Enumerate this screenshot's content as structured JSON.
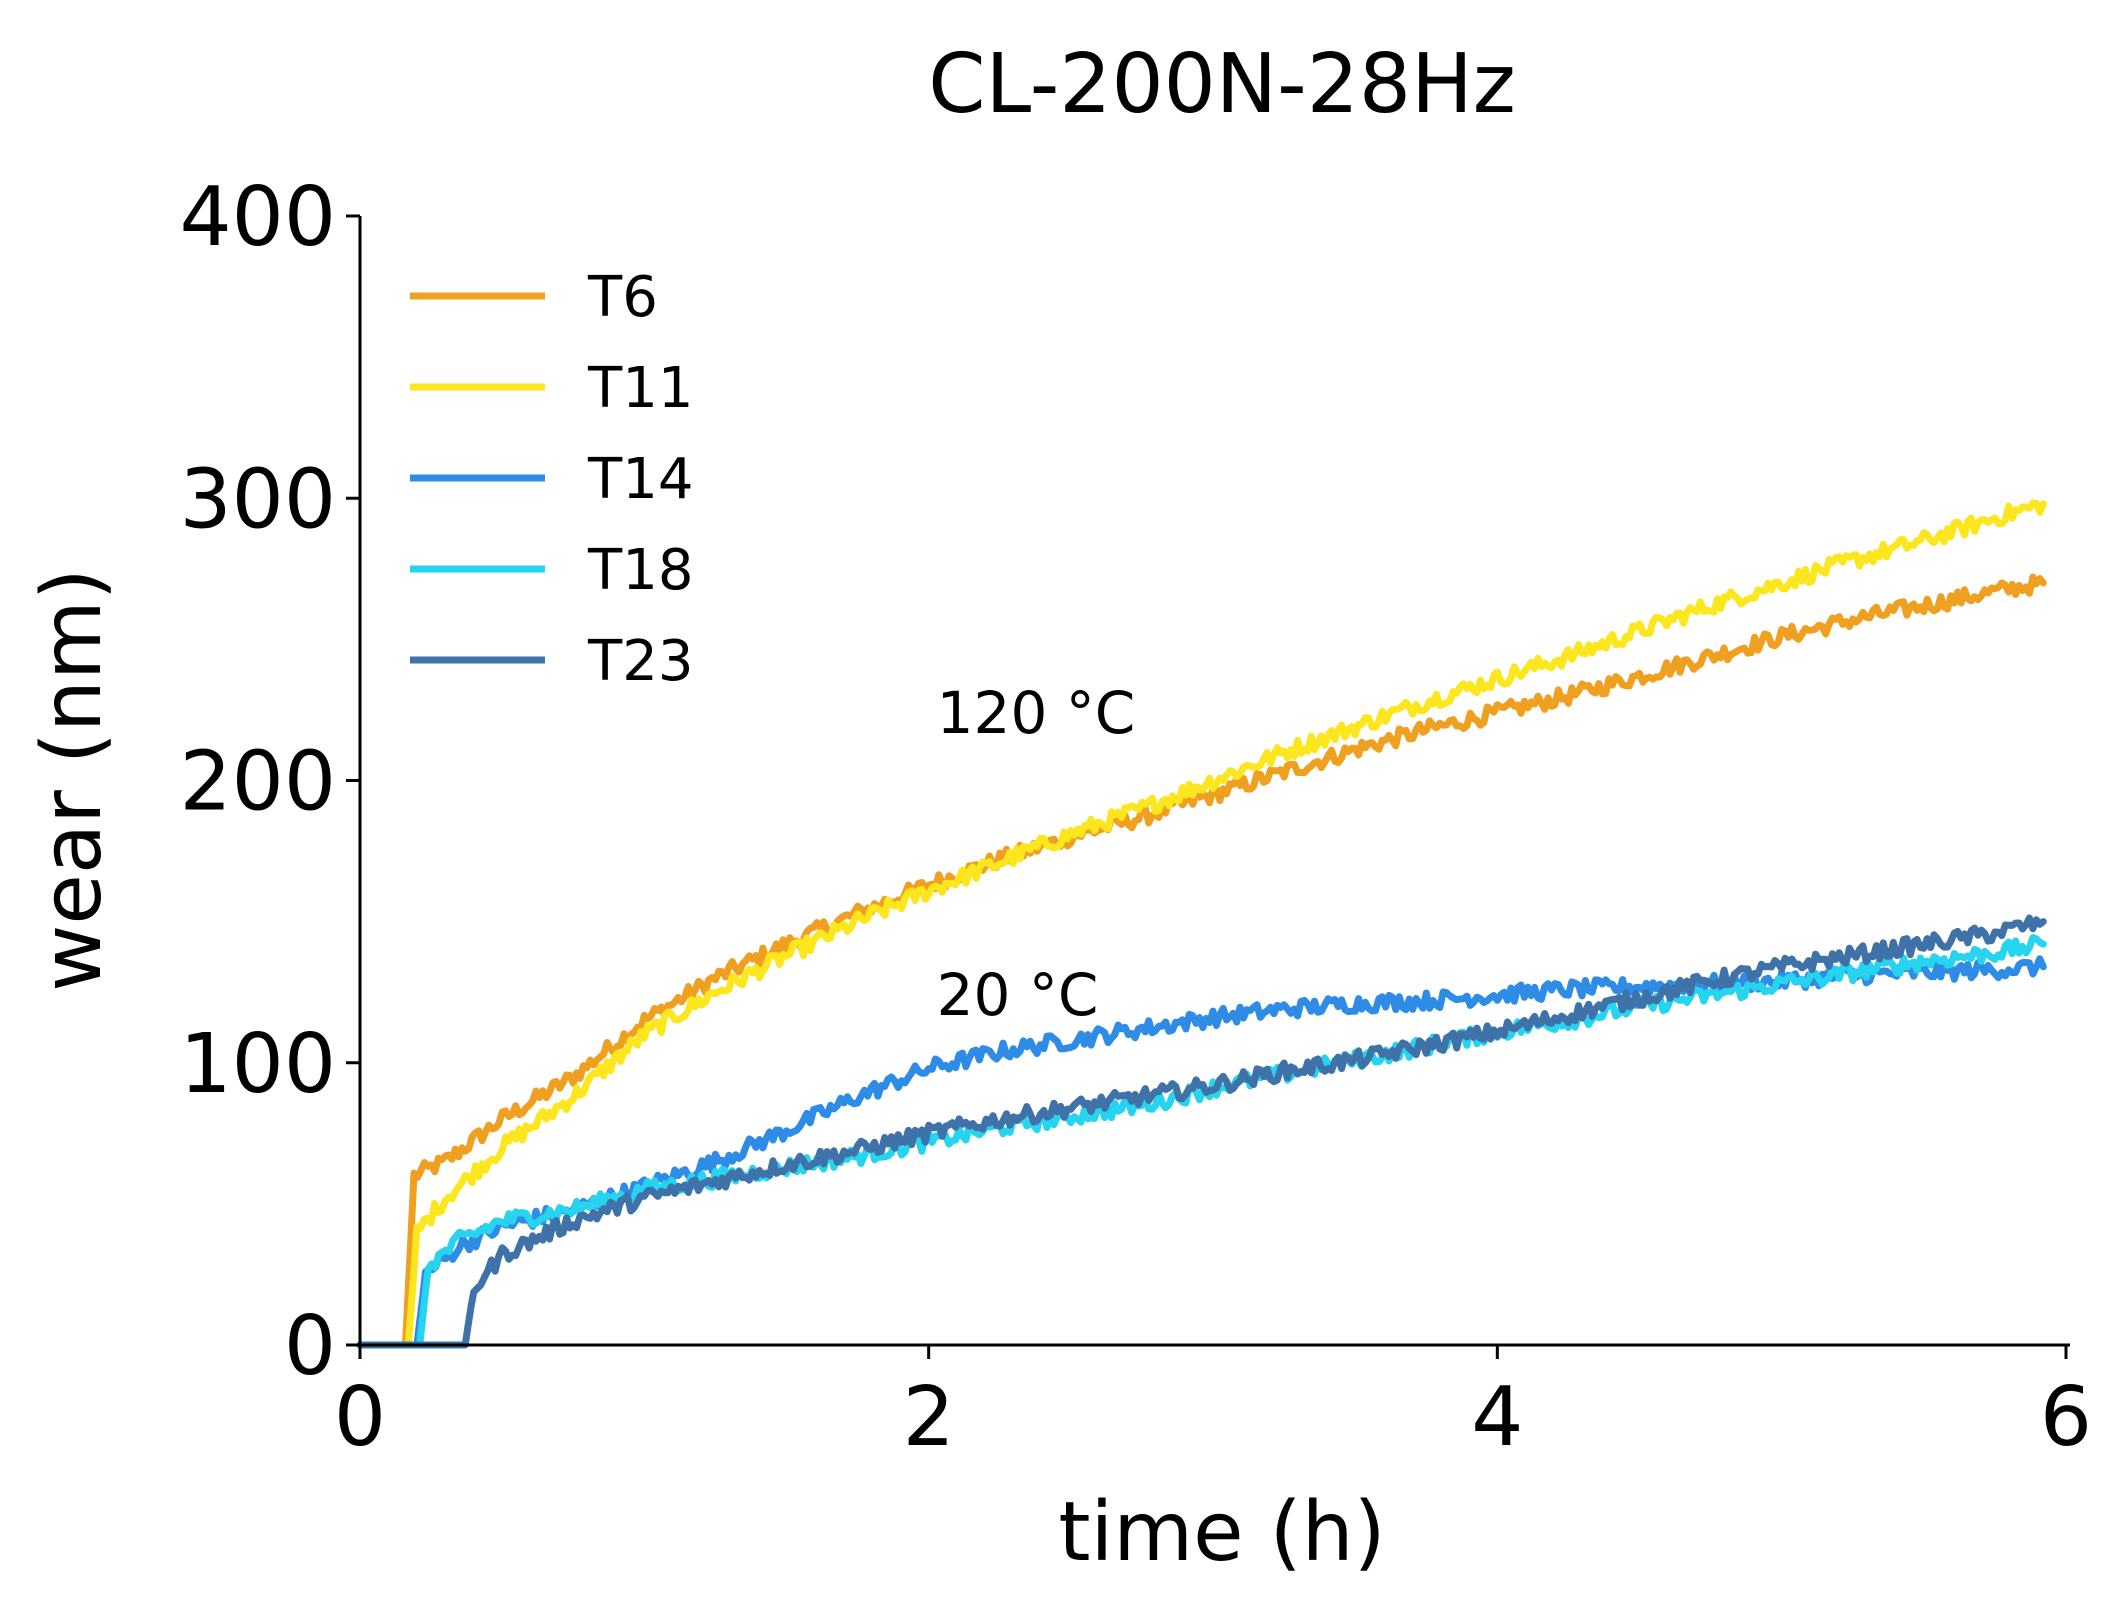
{
  "chart_data": {
    "type": "line",
    "title": "CL-200N-28Hz",
    "xlabel": "time (h)",
    "ylabel": "wear (nm)",
    "xlim": [
      0,
      6
    ],
    "ylim": [
      0,
      400
    ],
    "xticks": [
      0,
      2,
      4,
      6
    ],
    "yticks": [
      0,
      100,
      200,
      300,
      400
    ],
    "legend_position": "top-left",
    "grid": false,
    "annotations": [
      {
        "text": "120 °C",
        "x": 2.0,
        "y": 224
      },
      {
        "text": "20 °C",
        "x": 2.0,
        "y": 124
      }
    ],
    "series": [
      {
        "name": "T6",
        "color": "#F0A020",
        "points": [
          [
            0,
            0
          ],
          [
            0.16,
            0
          ],
          [
            0.19,
            60
          ],
          [
            0.3,
            65
          ],
          [
            0.5,
            80
          ],
          [
            0.75,
            95
          ],
          [
            1.0,
            115
          ],
          [
            1.25,
            130
          ],
          [
            1.5,
            142
          ],
          [
            1.75,
            153
          ],
          [
            2.0,
            163
          ],
          [
            2.25,
            172
          ],
          [
            2.5,
            180
          ],
          [
            2.75,
            187
          ],
          [
            3.0,
            195
          ],
          [
            3.25,
            203
          ],
          [
            3.5,
            211
          ],
          [
            3.75,
            218
          ],
          [
            4.0,
            224
          ],
          [
            4.25,
            230
          ],
          [
            4.5,
            237
          ],
          [
            4.75,
            244
          ],
          [
            5.0,
            251
          ],
          [
            5.25,
            257
          ],
          [
            5.5,
            262
          ],
          [
            5.75,
            267
          ],
          [
            5.92,
            270
          ]
        ]
      },
      {
        "name": "T11",
        "color": "#FCE61E",
        "points": [
          [
            0,
            0
          ],
          [
            0.17,
            0
          ],
          [
            0.2,
            40
          ],
          [
            0.3,
            52
          ],
          [
            0.5,
            70
          ],
          [
            0.75,
            88
          ],
          [
            1.0,
            110
          ],
          [
            1.25,
            125
          ],
          [
            1.5,
            138
          ],
          [
            1.75,
            150
          ],
          [
            2.0,
            161
          ],
          [
            2.25,
            171
          ],
          [
            2.5,
            181
          ],
          [
            2.75,
            190
          ],
          [
            3.0,
            200
          ],
          [
            3.25,
            210
          ],
          [
            3.5,
            219
          ],
          [
            3.75,
            228
          ],
          [
            4.0,
            236
          ],
          [
            4.25,
            244
          ],
          [
            4.5,
            253
          ],
          [
            4.75,
            262
          ],
          [
            5.0,
            270
          ],
          [
            5.25,
            278
          ],
          [
            5.5,
            285
          ],
          [
            5.75,
            293
          ],
          [
            5.92,
            298
          ]
        ]
      },
      {
        "name": "T14",
        "color": "#2E8BE6",
        "points": [
          [
            0,
            0
          ],
          [
            0.2,
            0
          ],
          [
            0.23,
            25
          ],
          [
            0.35,
            35
          ],
          [
            0.5,
            42
          ],
          [
            0.75,
            48
          ],
          [
            1.0,
            56
          ],
          [
            1.25,
            65
          ],
          [
            1.5,
            76
          ],
          [
            1.75,
            88
          ],
          [
            2.0,
            98
          ],
          [
            2.25,
            104
          ],
          [
            2.5,
            108
          ],
          [
            2.75,
            112
          ],
          [
            3.0,
            116
          ],
          [
            3.25,
            119
          ],
          [
            3.5,
            121
          ],
          [
            3.75,
            122
          ],
          [
            4.0,
            124
          ],
          [
            4.25,
            126
          ],
          [
            4.5,
            127
          ],
          [
            4.75,
            128
          ],
          [
            5.0,
            129
          ],
          [
            5.25,
            131
          ],
          [
            5.5,
            132
          ],
          [
            5.75,
            133
          ],
          [
            5.92,
            134
          ]
        ]
      },
      {
        "name": "T18",
        "color": "#26D4F0",
        "points": [
          [
            0,
            0
          ],
          [
            0.21,
            0
          ],
          [
            0.24,
            28
          ],
          [
            0.35,
            37
          ],
          [
            0.5,
            44
          ],
          [
            0.75,
            48
          ],
          [
            1.0,
            55
          ],
          [
            1.25,
            59
          ],
          [
            1.5,
            63
          ],
          [
            1.75,
            67
          ],
          [
            2.0,
            72
          ],
          [
            2.25,
            77
          ],
          [
            2.5,
            81
          ],
          [
            2.75,
            85
          ],
          [
            3.0,
            91
          ],
          [
            3.25,
            96
          ],
          [
            3.5,
            101
          ],
          [
            3.75,
            106
          ],
          [
            4.0,
            111
          ],
          [
            4.25,
            115
          ],
          [
            4.5,
            120
          ],
          [
            4.75,
            124
          ],
          [
            5.0,
            128
          ],
          [
            5.25,
            132
          ],
          [
            5.5,
            136
          ],
          [
            5.75,
            139
          ],
          [
            5.92,
            142
          ]
        ]
      },
      {
        "name": "T23",
        "color": "#3E72A8",
        "points": [
          [
            0,
            0
          ],
          [
            0.37,
            0
          ],
          [
            0.4,
            20
          ],
          [
            0.5,
            32
          ],
          [
            0.75,
            44
          ],
          [
            1.0,
            52
          ],
          [
            1.25,
            58
          ],
          [
            1.5,
            64
          ],
          [
            1.75,
            69
          ],
          [
            2.0,
            75
          ],
          [
            2.25,
            80
          ],
          [
            2.5,
            84
          ],
          [
            2.75,
            88
          ],
          [
            3.0,
            92
          ],
          [
            3.25,
            97
          ],
          [
            3.5,
            101
          ],
          [
            3.75,
            106
          ],
          [
            4.0,
            111
          ],
          [
            4.25,
            117
          ],
          [
            4.5,
            123
          ],
          [
            4.75,
            129
          ],
          [
            5.0,
            134
          ],
          [
            5.25,
            138
          ],
          [
            5.5,
            142
          ],
          [
            5.75,
            146
          ],
          [
            5.92,
            150
          ]
        ]
      }
    ]
  }
}
